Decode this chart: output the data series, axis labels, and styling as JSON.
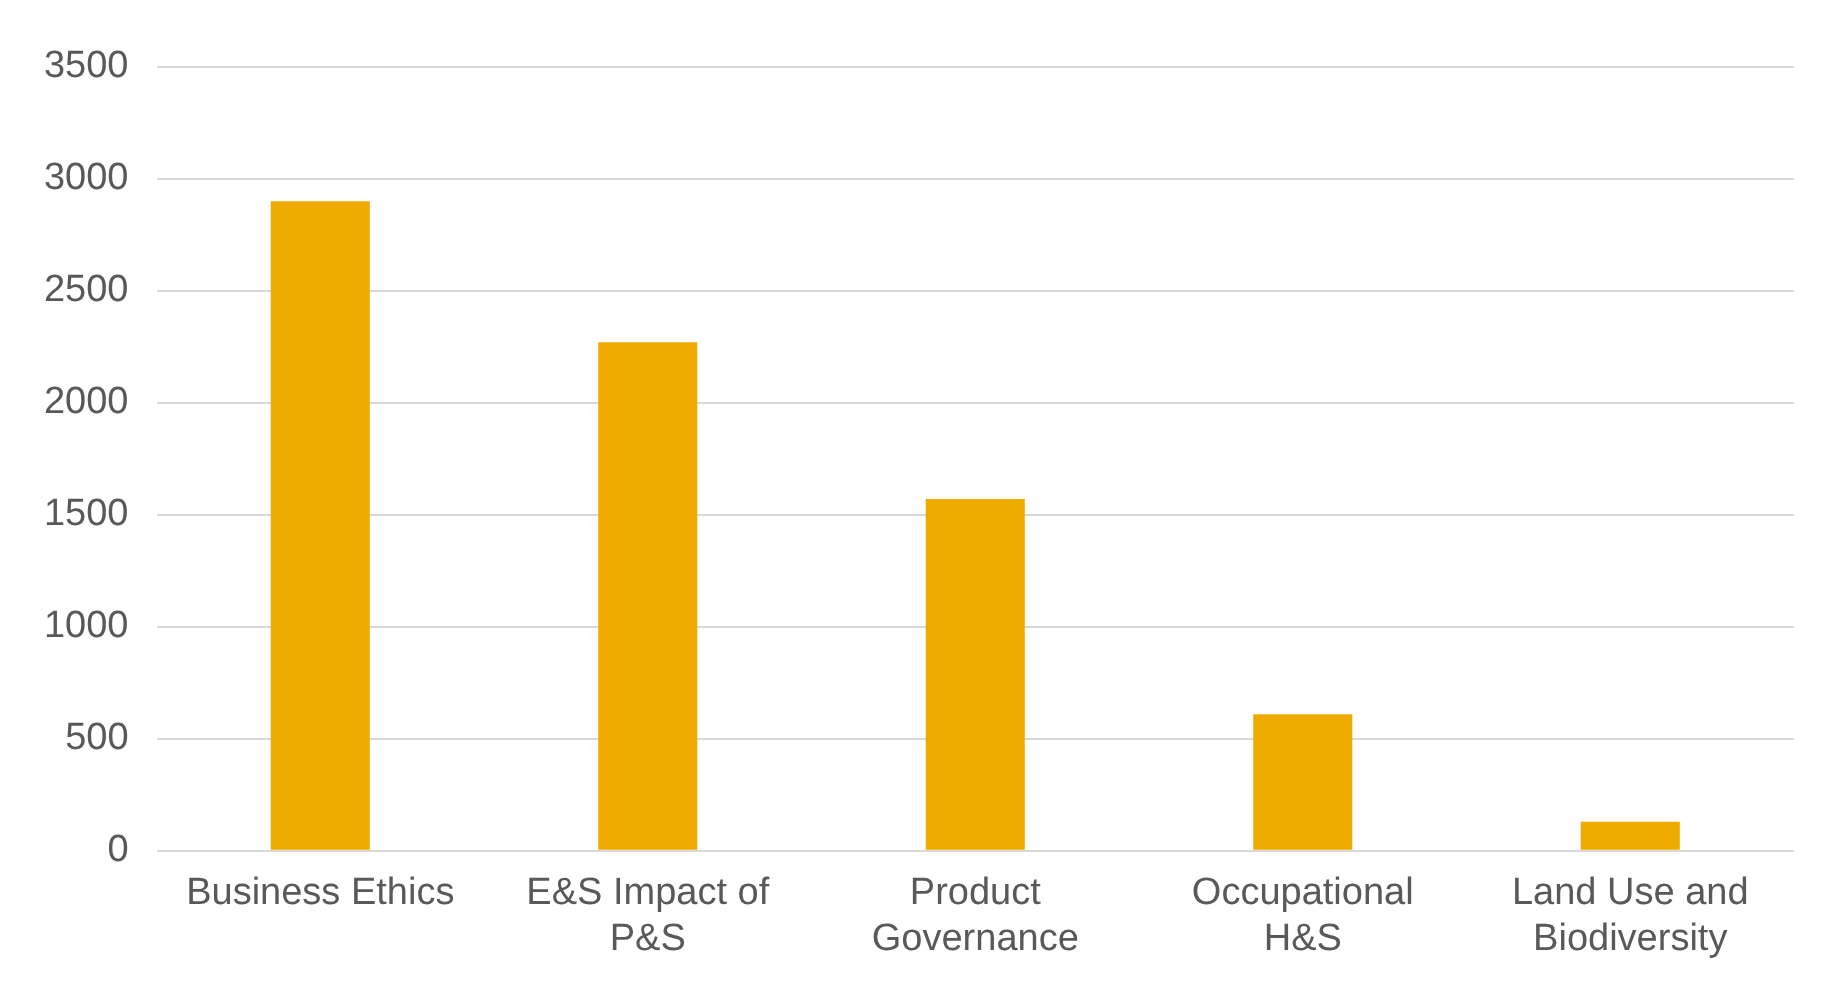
{
  "chart_data": {
    "type": "bar",
    "categories": [
      "Business Ethics",
      "E&S Impact of P&S",
      "Product Governance",
      "Occupational H&S",
      "Land Use and Biodiversity"
    ],
    "values": [
      2900,
      2270,
      1570,
      610,
      130
    ],
    "color": "#f0ab00",
    "ylim": [
      0,
      3500
    ],
    "yticks": [
      0,
      500,
      1000,
      1500,
      2000,
      2500,
      3000,
      3500
    ],
    "grid": "y"
  }
}
